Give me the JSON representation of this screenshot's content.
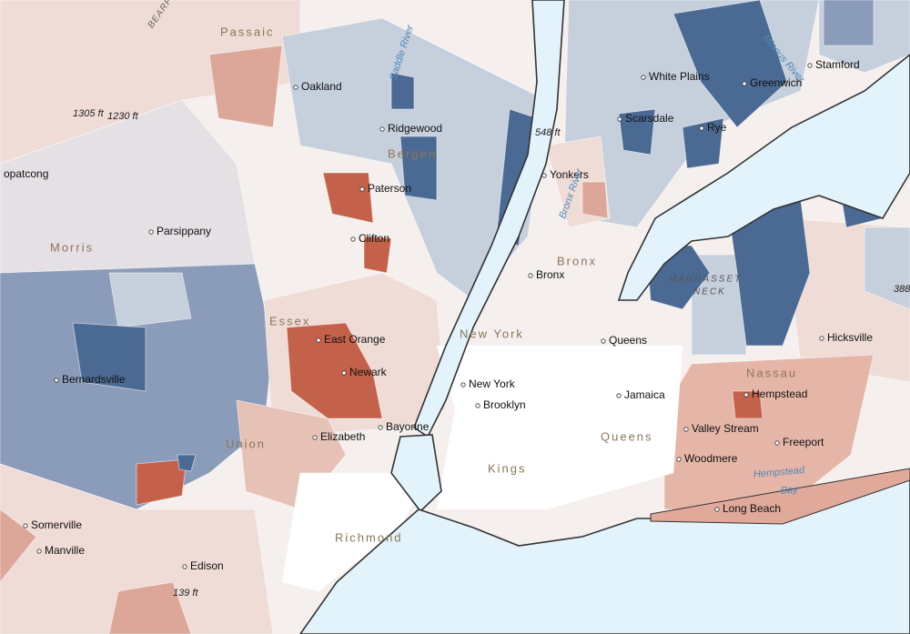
{
  "labels": {
    "places": [
      "Oakland",
      "Ridgewood",
      "Paterson",
      "Clifton",
      "Parsippany",
      "opatcong",
      "East Orange",
      "Newark",
      "Bernardsville",
      "Elizabeth",
      "Bayonne",
      "Somerville",
      "Manville",
      "Edison",
      "New York",
      "Brooklyn",
      "Bronx",
      "Queens",
      "Jamaica",
      "Yonkers",
      "White Plains",
      "Scarsdale",
      "Rye",
      "Greenwich",
      "Stamford",
      "Hicksville",
      "Hempstead",
      "Valley Stream",
      "Woodmere",
      "Freeport",
      "Long Beach"
    ],
    "regions": [
      "Passaic",
      "Bergen",
      "Morris",
      "Essex",
      "Union",
      "New York",
      "Bronx",
      "Queens",
      "Kings",
      "Richmond",
      "Nassau"
    ],
    "manhasset_neck": [
      "MANHASSET",
      "NECK"
    ],
    "water": [
      "Saddle River",
      "Bronx River",
      "Mianus River",
      "Hempstead",
      "Bay"
    ],
    "elevations": [
      "1305 ft",
      "1230 ft",
      "548 ft",
      "139 ft",
      "388"
    ],
    "roads": [
      "BEARFO"
    ]
  }
}
